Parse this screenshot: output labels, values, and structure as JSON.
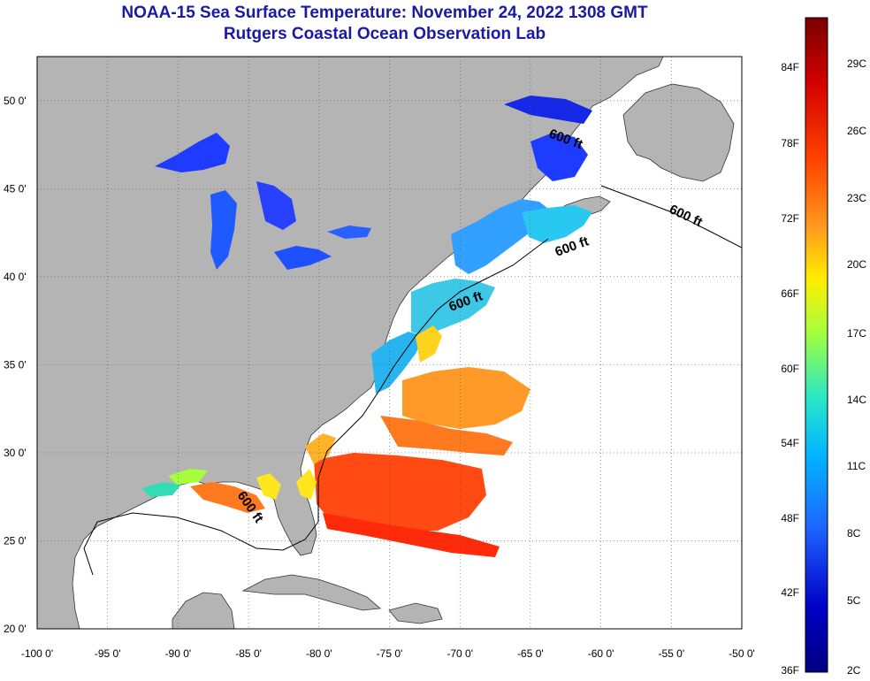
{
  "header": {
    "title": "NOAA-15 Sea Surface Temperature:  November 24, 2022 1308 GMT",
    "subtitle": "Rutgers Coastal Ocean Observation Lab"
  },
  "map": {
    "lon_range": [
      -100,
      -50
    ],
    "lat_range": [
      20,
      52.5
    ],
    "lon_ticks": [
      "-100 0'",
      "-95 0'",
      "-90 0'",
      "-85 0'",
      "-80 0'",
      "-75 0'",
      "-70 0'",
      "-65 0'",
      "-60 0'",
      "-55 0'",
      "-50 0'"
    ],
    "lat_ticks": [
      "20 0'",
      "25 0'",
      "30 0'",
      "35 0'",
      "40 0'",
      "45 0'",
      "50 0'"
    ],
    "grid": "dotted",
    "land_color": "#b4b4b4",
    "contour_labels": [
      "600 ft",
      "600 ft",
      "600 ft",
      "600 ft",
      "600 ft"
    ]
  },
  "colorbar": {
    "fahrenheit_labels": [
      "84F",
      "78F",
      "72F",
      "66F",
      "60F",
      "54F",
      "48F",
      "42F",
      "36F"
    ],
    "celsius_labels": [
      "29C",
      "26C",
      "23C",
      "20C",
      "17C",
      "14C",
      "11C",
      "8C",
      "5C",
      "2C"
    ],
    "colors": [
      "#7a0000",
      "#d40000",
      "#ff4500",
      "#ff9a1e",
      "#ffee00",
      "#a6ff3a",
      "#2ae8c8",
      "#00b4ff",
      "#1e64ff",
      "#0000c8",
      "#000080"
    ]
  }
}
